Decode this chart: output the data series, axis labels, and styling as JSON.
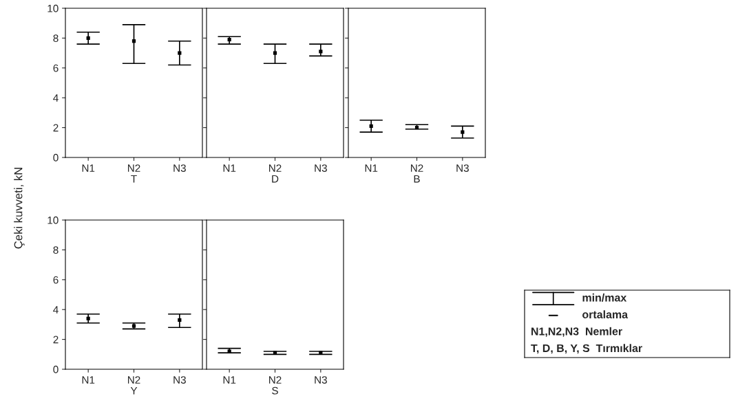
{
  "chart_data": [
    {
      "type": "scatter",
      "marker": "square",
      "xlabel": "T",
      "ylabel": "Çeki kuvveti, kN",
      "categories": [
        "N1",
        "N2",
        "N3"
      ],
      "ylim": [
        0,
        10
      ],
      "yticks": [
        0,
        2,
        4,
        6,
        8,
        10
      ],
      "grid": false,
      "legend": false,
      "series": [
        {
          "color": "#000000",
          "values": [
            8.0,
            7.8,
            7.0
          ],
          "errors": [
            [
              7.6,
              8.4
            ],
            [
              6.3,
              8.9
            ],
            [
              6.2,
              7.8
            ]
          ]
        }
      ]
    },
    {
      "type": "scatter",
      "marker": "square",
      "xlabel": "D",
      "categories": [
        "N1",
        "N2",
        "N3"
      ],
      "ylim": [
        0,
        10
      ],
      "yticks": [
        0,
        2,
        4,
        6,
        8,
        10
      ],
      "tick_labels": "x",
      "grid": false,
      "legend": false,
      "series": [
        {
          "color": "#000000",
          "values": [
            7.9,
            7.0,
            7.1
          ],
          "errors": [
            [
              7.6,
              8.1
            ],
            [
              6.3,
              7.6
            ],
            [
              6.8,
              7.6
            ]
          ]
        }
      ]
    },
    {
      "type": "scatter",
      "marker": "square",
      "xlabel": "B",
      "categories": [
        "N1",
        "N2",
        "N3"
      ],
      "ylim": [
        0,
        10
      ],
      "yticks": [
        0,
        2,
        4,
        6,
        8,
        10
      ],
      "tick_labels": "x",
      "grid": false,
      "legend": false,
      "series": [
        {
          "color": "#000000",
          "values": [
            2.1,
            2.0,
            1.7
          ],
          "errors": [
            [
              1.7,
              2.5
            ],
            [
              1.9,
              2.2
            ],
            [
              1.3,
              2.1
            ]
          ]
        }
      ]
    },
    {
      "type": "scatter",
      "marker": "square",
      "xlabel": "Y",
      "categories": [
        "N1",
        "N2",
        "N3"
      ],
      "ylim": [
        0,
        10
      ],
      "yticks": [
        0,
        2,
        4,
        6,
        8,
        10
      ],
      "grid": false,
      "legend": false,
      "series": [
        {
          "color": "#000000",
          "values": [
            3.4,
            2.9,
            3.3
          ],
          "errors": [
            [
              3.1,
              3.7
            ],
            [
              2.7,
              3.1
            ],
            [
              2.8,
              3.7
            ]
          ]
        }
      ]
    },
    {
      "type": "scatter",
      "marker": "square",
      "xlabel": "S",
      "categories": [
        "N1",
        "N2",
        "N3"
      ],
      "ylim": [
        0,
        10
      ],
      "yticks": [
        0,
        2,
        4,
        6,
        8,
        10
      ],
      "tick_labels": "x",
      "grid": false,
      "legend": false,
      "series": [
        {
          "color": "#000000",
          "values": [
            1.2,
            1.1,
            1.1
          ],
          "errors": [
            [
              1.1,
              1.4
            ],
            [
              1.0,
              1.2
            ],
            [
              1.0,
              1.2
            ]
          ]
        }
      ]
    },
    {
      "type": "other",
      "annotations": [
        "min/max",
        "ortalama",
        "N1,N2,N3  Nemler",
        "T, D, B, Y, S  Tırmıklar"
      ]
    }
  ]
}
